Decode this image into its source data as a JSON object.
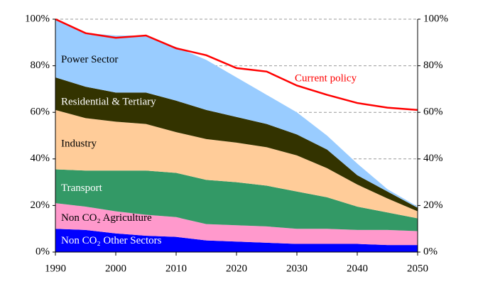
{
  "chart_data": {
    "type": "stacked_area",
    "x": [
      1990,
      1995,
      2000,
      2005,
      2010,
      2015,
      2020,
      2025,
      2030,
      2035,
      2040,
      2045,
      2050
    ],
    "xlim": [
      1990,
      2050
    ],
    "xticks": [
      1990,
      2000,
      2010,
      2020,
      2030,
      2040,
      2050
    ],
    "ylim": [
      0,
      100
    ],
    "yticks": [
      {
        "value": 0,
        "label": "0%"
      },
      {
        "value": 20,
        "label": "20%"
      },
      {
        "value": 40,
        "label": "40%"
      },
      {
        "value": 60,
        "label": "60%"
      },
      {
        "value": 80,
        "label": "80%"
      },
      {
        "value": 100,
        "label": "100%"
      }
    ],
    "y2lim": [
      0,
      100
    ],
    "y2ticks": [
      {
        "value": 0,
        "label": "0%"
      },
      {
        "value": 20,
        "label": "20%"
      },
      {
        "value": 40,
        "label": "40%"
      },
      {
        "value": 60,
        "label": "60%"
      },
      {
        "value": 80,
        "label": "80%"
      },
      {
        "value": 100,
        "label": "100%"
      }
    ],
    "grid": true,
    "series": [
      {
        "name": "Non CO₂ Other Sectors",
        "color": "#0000ff",
        "values": [
          10,
          9.5,
          8,
          7,
          6.5,
          5,
          4.5,
          4,
          3.5,
          3.5,
          3.5,
          3,
          3
        ]
      },
      {
        "name": "Non CO₂ Agriculture",
        "color": "#ff99cc",
        "values": [
          11,
          10,
          9.5,
          9,
          8.5,
          7,
          7,
          7,
          6.5,
          6.5,
          6,
          6.5,
          6
        ]
      },
      {
        "name": "Transport",
        "color": "#339966",
        "values": [
          14.5,
          15.5,
          17.5,
          19,
          19,
          19,
          18.5,
          17.5,
          16,
          13.5,
          10,
          7.5,
          5.5
        ]
      },
      {
        "name": "Industry",
        "color": "#ffcc99",
        "values": [
          25.5,
          22.5,
          21,
          20,
          17.5,
          17.5,
          17,
          16.5,
          15.5,
          12.5,
          9.5,
          6,
          3
        ]
      },
      {
        "name": "Residential & Tertiary",
        "color": "#333300",
        "values": [
          14,
          13.5,
          12.5,
          13.5,
          13.5,
          12.5,
          11,
          10,
          9,
          8,
          4,
          3,
          1.5
        ]
      },
      {
        "name": "Power Sector",
        "color": "#99ccff",
        "values": [
          25,
          23,
          24.5,
          24.5,
          23,
          21.5,
          17,
          12.5,
          9.5,
          6,
          5,
          1,
          0.5
        ]
      }
    ],
    "line": {
      "name": "Current policy",
      "color": "#ff0000",
      "values": [
        100,
        94,
        92,
        93,
        87.5,
        84.5,
        79,
        77.5,
        71.5,
        67.5,
        64,
        62,
        61
      ]
    }
  }
}
